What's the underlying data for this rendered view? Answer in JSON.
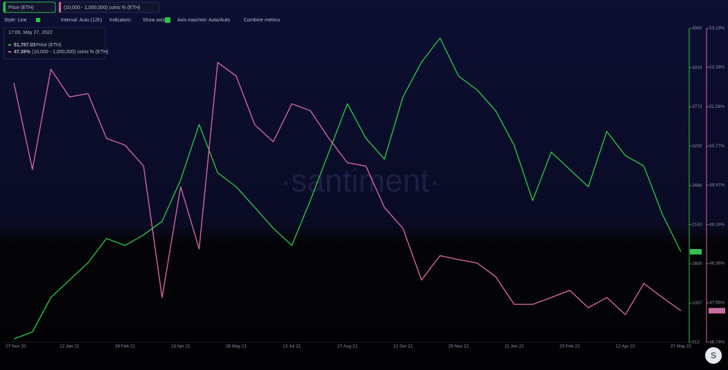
{
  "chart_data": {
    "type": "line",
    "legend_chips": [
      "Price (ETH)",
      "(10,000 - 1,000,000) coins % (ETH)"
    ],
    "toolbar": [
      "Style: Line",
      "Interval: Auto (12h)",
      "Indicators:",
      "Show axis",
      "Axis max/min: Auto/Auto",
      "Combine metrics"
    ],
    "tooltip": {
      "title": "17:00, May 27, 2022",
      "items": [
        {
          "label": "$1,767.03",
          "text": "Price (ETH)"
        },
        {
          "label": "47.39%",
          "text": "(10,000 - 1,000,000) coins % (ETH)"
        }
      ]
    },
    "watermark": "·santiment·",
    "badges": [
      "1767",
      "47.39%"
    ],
    "categories": [
      "27 Nov 20",
      null,
      null,
      "12 Jan 21",
      null,
      null,
      "26 Feb 21",
      null,
      null,
      "13 Apr 21",
      null,
      null,
      "28 May 21",
      null,
      null,
      "13 Jul 21",
      null,
      null,
      "27 Aug 21",
      null,
      null,
      "12 Oct 21",
      null,
      null,
      "26 Nov 21",
      null,
      null,
      "11 Jan 22",
      null,
      null,
      "25 Feb 22",
      null,
      null,
      "12 Apr 22",
      null,
      null,
      "27 May 22"
    ],
    "series": [
      {
        "name": "Price (ETH)",
        "color": "#26c940",
        "axis": "y",
        "values": [
          560,
          657,
          1135,
          1375,
          1614,
          1950,
          1854,
          2000,
          2189,
          2763,
          3529,
          2859,
          2667,
          2380,
          2093,
          1854,
          2476,
          3146,
          3816,
          3338,
          3050,
          3912,
          4391,
          4726,
          4199,
          4008,
          3721,
          3242,
          2476,
          3146,
          2907,
          2667,
          3433,
          3098,
          2955,
          2284,
          1767.03
        ]
      },
      {
        "name": "(10,000 - 1,000,000) coins % (ETH)",
        "color": "#d9669f",
        "axis": "y2",
        "values": [
          52.07,
          50.29,
          52.35,
          51.78,
          51.85,
          50.93,
          50.79,
          50.36,
          47.66,
          49.94,
          48.66,
          52.49,
          52.21,
          51.21,
          50.86,
          51.64,
          51.5,
          50.93,
          50.43,
          50.36,
          49.51,
          49.08,
          48.02,
          48.52,
          48.44,
          48.37,
          48.09,
          47.52,
          47.52,
          47.66,
          47.81,
          47.45,
          47.66,
          47.31,
          47.95,
          47.66,
          47.39
        ]
      }
    ],
    "ylim": [
      513,
      4860
    ],
    "yticks": [
      513,
      1057,
      1600,
      2143,
      2686,
      3230,
      3773,
      4316,
      4860
    ],
    "y2lim": [
      46.74,
      53.19
    ],
    "y2ticks": [
      {
        "value": 46.74,
        "label": "46.74%"
      },
      {
        "value": 47.55,
        "label": "47.55%"
      },
      {
        "value": 48.36,
        "label": "48.36%"
      },
      {
        "value": 49.16,
        "label": "49.16%"
      },
      {
        "value": 49.97,
        "label": "49.97%"
      },
      {
        "value": 50.77,
        "label": "50.77%"
      },
      {
        "value": 51.58,
        "label": "51.58%"
      },
      {
        "value": 52.39,
        "label": "52.39%"
      },
      {
        "value": 53.19,
        "label": "53.19%"
      }
    ]
  }
}
